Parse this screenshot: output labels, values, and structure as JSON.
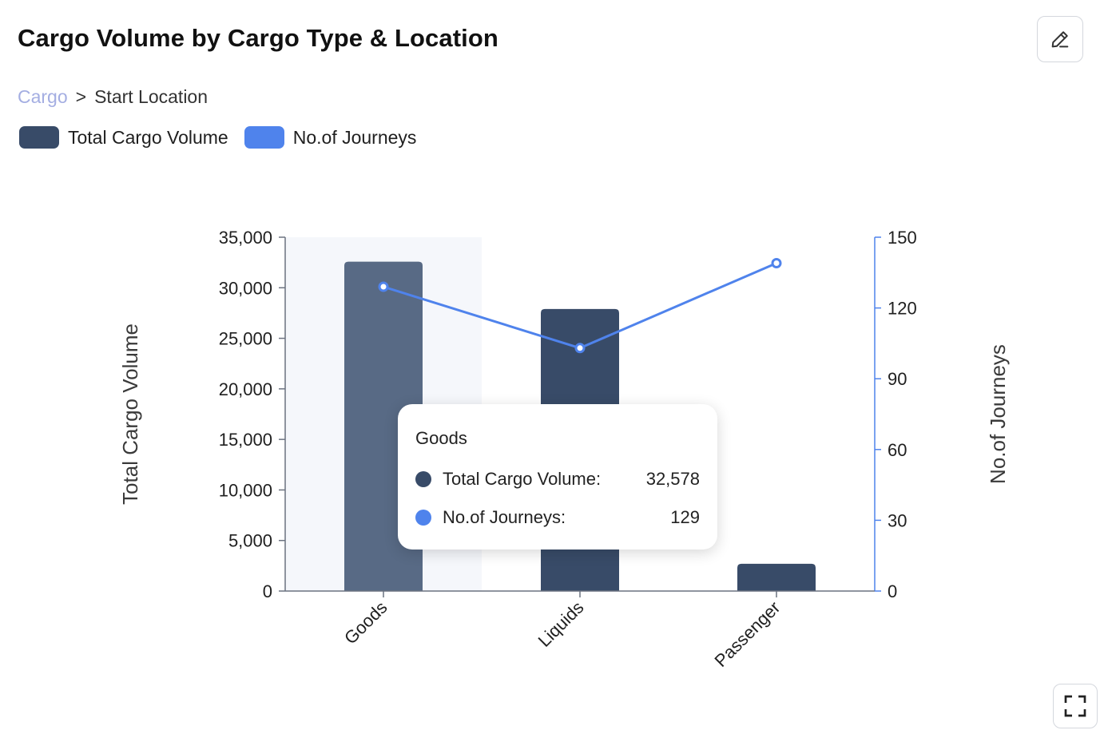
{
  "header": {
    "title": "Cargo Volume by Cargo Type & Location",
    "edit_icon": "pencil-icon"
  },
  "breadcrumb": {
    "root": "Cargo",
    "separator": ">",
    "current": "Start Location"
  },
  "legend": [
    {
      "label": "Total Cargo Volume",
      "color": "#384b68"
    },
    {
      "label": "No.of Journeys",
      "color": "#4f83ec"
    }
  ],
  "chart_data": {
    "type": "bar",
    "title": "Cargo Volume by Cargo Type & Location",
    "categories": [
      "Goods",
      "Liquids",
      "Passenger"
    ],
    "series": [
      {
        "name": "Total Cargo Volume",
        "type": "bar",
        "axis": "left",
        "color": "#384b68",
        "values": [
          32578,
          27900,
          2700
        ]
      },
      {
        "name": "No.of Journeys",
        "type": "line",
        "axis": "right",
        "color": "#4f83ec",
        "values": [
          129,
          103,
          139
        ]
      }
    ],
    "y_left": {
      "label": "Total Cargo Volume",
      "ylim": [
        0,
        35000
      ],
      "ticks": [
        0,
        5000,
        10000,
        15000,
        20000,
        25000,
        30000,
        35000
      ],
      "tick_labels": [
        "0",
        "5,000",
        "10,000",
        "15,000",
        "20,000",
        "25,000",
        "30,000",
        "35,000"
      ]
    },
    "y_right": {
      "label": "No.of Journeys",
      "ylim": [
        0,
        150
      ],
      "ticks": [
        0,
        30,
        60,
        90,
        120,
        150
      ],
      "tick_labels": [
        "0",
        "30",
        "60",
        "90",
        "120",
        "150"
      ]
    },
    "highlighted_category": "Goods",
    "highlight_bar_color": "#586a85",
    "grid": false,
    "legend_position": "top-left"
  },
  "tooltip": {
    "title": "Goods",
    "rows": [
      {
        "label": "Total Cargo Volume:",
        "value": "32,578",
        "color": "#384b68"
      },
      {
        "label": "No.of Journeys:",
        "value": "129",
        "color": "#4f83ec"
      }
    ]
  },
  "controls": {
    "fullscreen_icon": "fullscreen-icon"
  }
}
